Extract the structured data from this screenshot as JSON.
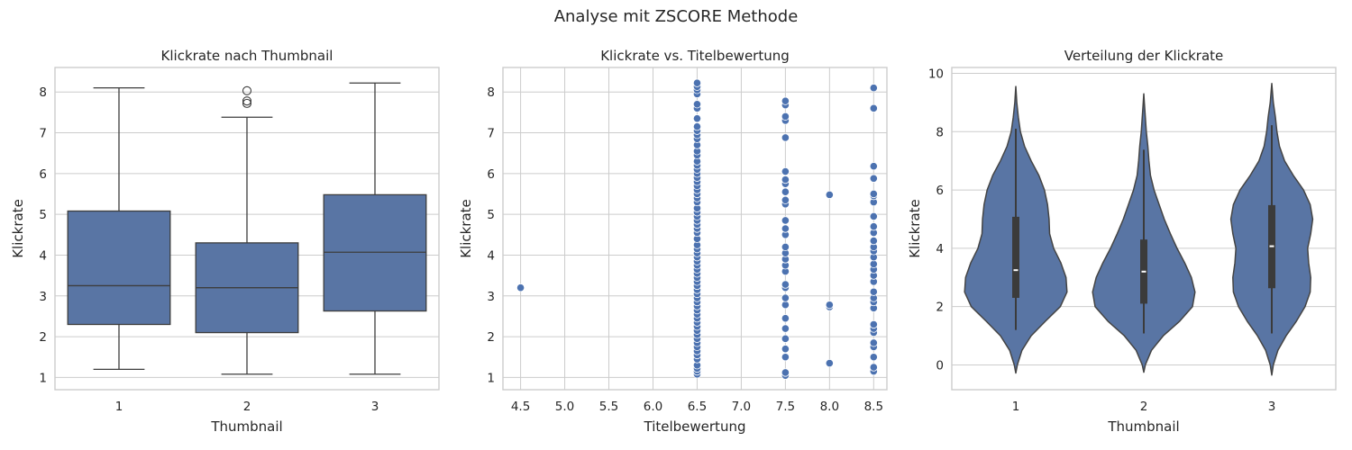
{
  "figure": {
    "suptitle": "Analyse mit ZSCORE Methode",
    "colors": {
      "box": "#5975a4",
      "edge": "#3d3d3d",
      "point": "#4c72b0",
      "violin": "#5975a4",
      "grid": "#cccccc"
    }
  },
  "chart_data": [
    {
      "type": "box",
      "title": "Klickrate nach Thumbnail",
      "xlabel": "Thumbnail",
      "ylabel": "Klickrate",
      "categories": [
        "1",
        "2",
        "3"
      ],
      "ylim": [
        0.7,
        8.6
      ],
      "yticks": [
        1,
        2,
        3,
        4,
        5,
        6,
        7,
        8
      ],
      "grid": true,
      "boxes": [
        {
          "category": "1",
          "min": 1.2,
          "q1": 2.3,
          "median": 3.25,
          "q3": 5.08,
          "max": 8.1,
          "outliers": []
        },
        {
          "category": "2",
          "min": 1.08,
          "q1": 2.1,
          "median": 3.2,
          "q3": 4.3,
          "max": 7.38,
          "outliers": [
            7.72,
            7.78,
            8.03
          ]
        },
        {
          "category": "3",
          "min": 1.08,
          "q1": 2.63,
          "median": 4.07,
          "q3": 5.48,
          "max": 8.22,
          "outliers": []
        }
      ]
    },
    {
      "type": "scatter",
      "title": "Klickrate vs. Titelbewertung",
      "xlabel": "Titelbewertung",
      "ylabel": "Klickrate",
      "xlim": [
        4.3,
        8.65
      ],
      "ylim": [
        0.7,
        8.6
      ],
      "xticks": [
        4.5,
        5.0,
        5.5,
        6.0,
        6.5,
        7.0,
        7.5,
        8.0,
        8.5
      ],
      "yticks": [
        1,
        2,
        3,
        4,
        5,
        6,
        7,
        8
      ],
      "grid": true,
      "points": [
        [
          4.5,
          3.2
        ],
        [
          6.5,
          1.08
        ],
        [
          6.5,
          1.15
        ],
        [
          6.5,
          1.22
        ],
        [
          6.5,
          1.3
        ],
        [
          6.5,
          1.45
        ],
        [
          6.5,
          1.55
        ],
        [
          6.5,
          1.65
        ],
        [
          6.5,
          1.75
        ],
        [
          6.5,
          1.85
        ],
        [
          6.5,
          1.95
        ],
        [
          6.5,
          2.05
        ],
        [
          6.5,
          2.15
        ],
        [
          6.5,
          2.25
        ],
        [
          6.5,
          2.35
        ],
        [
          6.5,
          2.45
        ],
        [
          6.5,
          2.55
        ],
        [
          6.5,
          2.65
        ],
        [
          6.5,
          2.75
        ],
        [
          6.5,
          2.85
        ],
        [
          6.5,
          2.95
        ],
        [
          6.5,
          3.05
        ],
        [
          6.5,
          3.15
        ],
        [
          6.5,
          3.25
        ],
        [
          6.5,
          3.35
        ],
        [
          6.5,
          3.45
        ],
        [
          6.5,
          3.55
        ],
        [
          6.5,
          3.65
        ],
        [
          6.5,
          3.75
        ],
        [
          6.5,
          3.85
        ],
        [
          6.5,
          3.95
        ],
        [
          6.5,
          4.05
        ],
        [
          6.5,
          4.15
        ],
        [
          6.5,
          4.25
        ],
        [
          6.5,
          4.4
        ],
        [
          6.5,
          4.55
        ],
        [
          6.5,
          4.65
        ],
        [
          6.5,
          4.75
        ],
        [
          6.5,
          4.85
        ],
        [
          6.5,
          4.95
        ],
        [
          6.5,
          5.05
        ],
        [
          6.5,
          5.15
        ],
        [
          6.5,
          5.3
        ],
        [
          6.5,
          5.4
        ],
        [
          6.5,
          5.5
        ],
        [
          6.5,
          5.6
        ],
        [
          6.5,
          5.7
        ],
        [
          6.5,
          5.8
        ],
        [
          6.5,
          5.9
        ],
        [
          6.5,
          6.0
        ],
        [
          6.5,
          6.1
        ],
        [
          6.5,
          6.2
        ],
        [
          6.5,
          6.3
        ],
        [
          6.5,
          6.45
        ],
        [
          6.5,
          6.55
        ],
        [
          6.5,
          6.7
        ],
        [
          6.5,
          6.85
        ],
        [
          6.5,
          6.95
        ],
        [
          6.5,
          7.05
        ],
        [
          6.5,
          7.15
        ],
        [
          6.5,
          7.35
        ],
        [
          6.5,
          7.6
        ],
        [
          6.5,
          7.7
        ],
        [
          6.5,
          7.95
        ],
        [
          6.5,
          8.05
        ],
        [
          6.5,
          8.13
        ],
        [
          6.5,
          8.22
        ],
        [
          7.5,
          1.05
        ],
        [
          7.5,
          1.12
        ],
        [
          7.5,
          1.5
        ],
        [
          7.5,
          1.7
        ],
        [
          7.5,
          1.95
        ],
        [
          7.5,
          2.2
        ],
        [
          7.5,
          2.45
        ],
        [
          7.5,
          2.78
        ],
        [
          7.5,
          2.95
        ],
        [
          7.5,
          3.2
        ],
        [
          7.5,
          3.28
        ],
        [
          7.5,
          3.6
        ],
        [
          7.5,
          3.75
        ],
        [
          7.5,
          3.9
        ],
        [
          7.5,
          4.05
        ],
        [
          7.5,
          4.2
        ],
        [
          7.5,
          4.5
        ],
        [
          7.5,
          4.65
        ],
        [
          7.5,
          4.85
        ],
        [
          7.5,
          5.25
        ],
        [
          7.5,
          5.35
        ],
        [
          7.5,
          5.55
        ],
        [
          7.5,
          5.75
        ],
        [
          7.5,
          5.85
        ],
        [
          7.5,
          6.05
        ],
        [
          7.5,
          6.88
        ],
        [
          7.5,
          7.3
        ],
        [
          7.5,
          7.4
        ],
        [
          7.5,
          7.68
        ],
        [
          7.5,
          7.78
        ],
        [
          8.0,
          1.35
        ],
        [
          8.0,
          2.73
        ],
        [
          8.0,
          2.78
        ],
        [
          8.0,
          5.48
        ],
        [
          8.5,
          1.15
        ],
        [
          8.5,
          1.25
        ],
        [
          8.5,
          1.5
        ],
        [
          8.5,
          1.75
        ],
        [
          8.5,
          1.85
        ],
        [
          8.5,
          2.1
        ],
        [
          8.5,
          2.2
        ],
        [
          8.5,
          2.3
        ],
        [
          8.5,
          2.7
        ],
        [
          8.5,
          2.85
        ],
        [
          8.5,
          2.95
        ],
        [
          8.5,
          3.1
        ],
        [
          8.5,
          3.35
        ],
        [
          8.5,
          3.5
        ],
        [
          8.5,
          3.65
        ],
        [
          8.5,
          3.78
        ],
        [
          8.5,
          3.95
        ],
        [
          8.5,
          4.1
        ],
        [
          8.5,
          4.2
        ],
        [
          8.5,
          4.35
        ],
        [
          8.5,
          4.55
        ],
        [
          8.5,
          4.7
        ],
        [
          8.5,
          4.95
        ],
        [
          8.5,
          5.3
        ],
        [
          8.5,
          5.45
        ],
        [
          8.5,
          5.5
        ],
        [
          8.5,
          5.88
        ],
        [
          8.5,
          6.18
        ],
        [
          8.5,
          7.6
        ],
        [
          8.5,
          8.1
        ]
      ]
    },
    {
      "type": "violin",
      "title": "Verteilung der Klickrate",
      "xlabel": "Thumbnail",
      "ylabel": "Klickrate",
      "categories": [
        "1",
        "2",
        "3"
      ],
      "ylim": [
        -0.85,
        10.2
      ],
      "yticks": [
        0,
        2,
        4,
        6,
        8,
        10
      ],
      "grid": true,
      "violins": [
        {
          "category": "1",
          "min": 1.2,
          "q1": 2.3,
          "median": 3.25,
          "q3": 5.08,
          "max": 8.1,
          "density": [
            [
              -0.28,
              0.0
            ],
            [
              0.0,
              0.03
            ],
            [
              0.5,
              0.12
            ],
            [
              1.0,
              0.3
            ],
            [
              1.5,
              0.58
            ],
            [
              2.0,
              0.87
            ],
            [
              2.5,
              1.0
            ],
            [
              3.0,
              0.98
            ],
            [
              3.5,
              0.88
            ],
            [
              4.0,
              0.74
            ],
            [
              4.5,
              0.66
            ],
            [
              5.0,
              0.65
            ],
            [
              5.5,
              0.62
            ],
            [
              6.0,
              0.56
            ],
            [
              6.5,
              0.45
            ],
            [
              7.0,
              0.3
            ],
            [
              7.5,
              0.17
            ],
            [
              8.0,
              0.09
            ],
            [
              8.5,
              0.05
            ],
            [
              9.0,
              0.02
            ],
            [
              9.55,
              0.0
            ]
          ]
        },
        {
          "category": "2",
          "min": 1.08,
          "q1": 2.1,
          "median": 3.2,
          "q3": 4.3,
          "max": 7.38,
          "density": [
            [
              -0.25,
              0.0
            ],
            [
              0.0,
              0.03
            ],
            [
              0.5,
              0.15
            ],
            [
              1.0,
              0.38
            ],
            [
              1.5,
              0.7
            ],
            [
              2.0,
              0.95
            ],
            [
              2.5,
              1.0
            ],
            [
              3.0,
              0.93
            ],
            [
              3.5,
              0.8
            ],
            [
              4.0,
              0.65
            ],
            [
              4.5,
              0.52
            ],
            [
              5.0,
              0.4
            ],
            [
              5.5,
              0.3
            ],
            [
              6.0,
              0.2
            ],
            [
              6.5,
              0.13
            ],
            [
              7.0,
              0.1
            ],
            [
              7.5,
              0.08
            ],
            [
              8.0,
              0.05
            ],
            [
              8.5,
              0.03
            ],
            [
              9.0,
              0.01
            ],
            [
              9.3,
              0.0
            ]
          ]
        },
        {
          "category": "3",
          "min": 1.08,
          "q1": 2.63,
          "median": 4.07,
          "q3": 5.48,
          "max": 8.22,
          "density": [
            [
              -0.35,
              0.0
            ],
            [
              0.0,
              0.03
            ],
            [
              0.5,
              0.12
            ],
            [
              1.0,
              0.28
            ],
            [
              1.5,
              0.48
            ],
            [
              2.0,
              0.65
            ],
            [
              2.5,
              0.75
            ],
            [
              3.0,
              0.76
            ],
            [
              3.5,
              0.72
            ],
            [
              4.0,
              0.7
            ],
            [
              4.5,
              0.76
            ],
            [
              5.0,
              0.8
            ],
            [
              5.5,
              0.75
            ],
            [
              6.0,
              0.62
            ],
            [
              6.5,
              0.42
            ],
            [
              7.0,
              0.25
            ],
            [
              7.5,
              0.15
            ],
            [
              8.0,
              0.1
            ],
            [
              8.5,
              0.07
            ],
            [
              9.0,
              0.03
            ],
            [
              9.65,
              0.0
            ]
          ]
        }
      ]
    }
  ]
}
